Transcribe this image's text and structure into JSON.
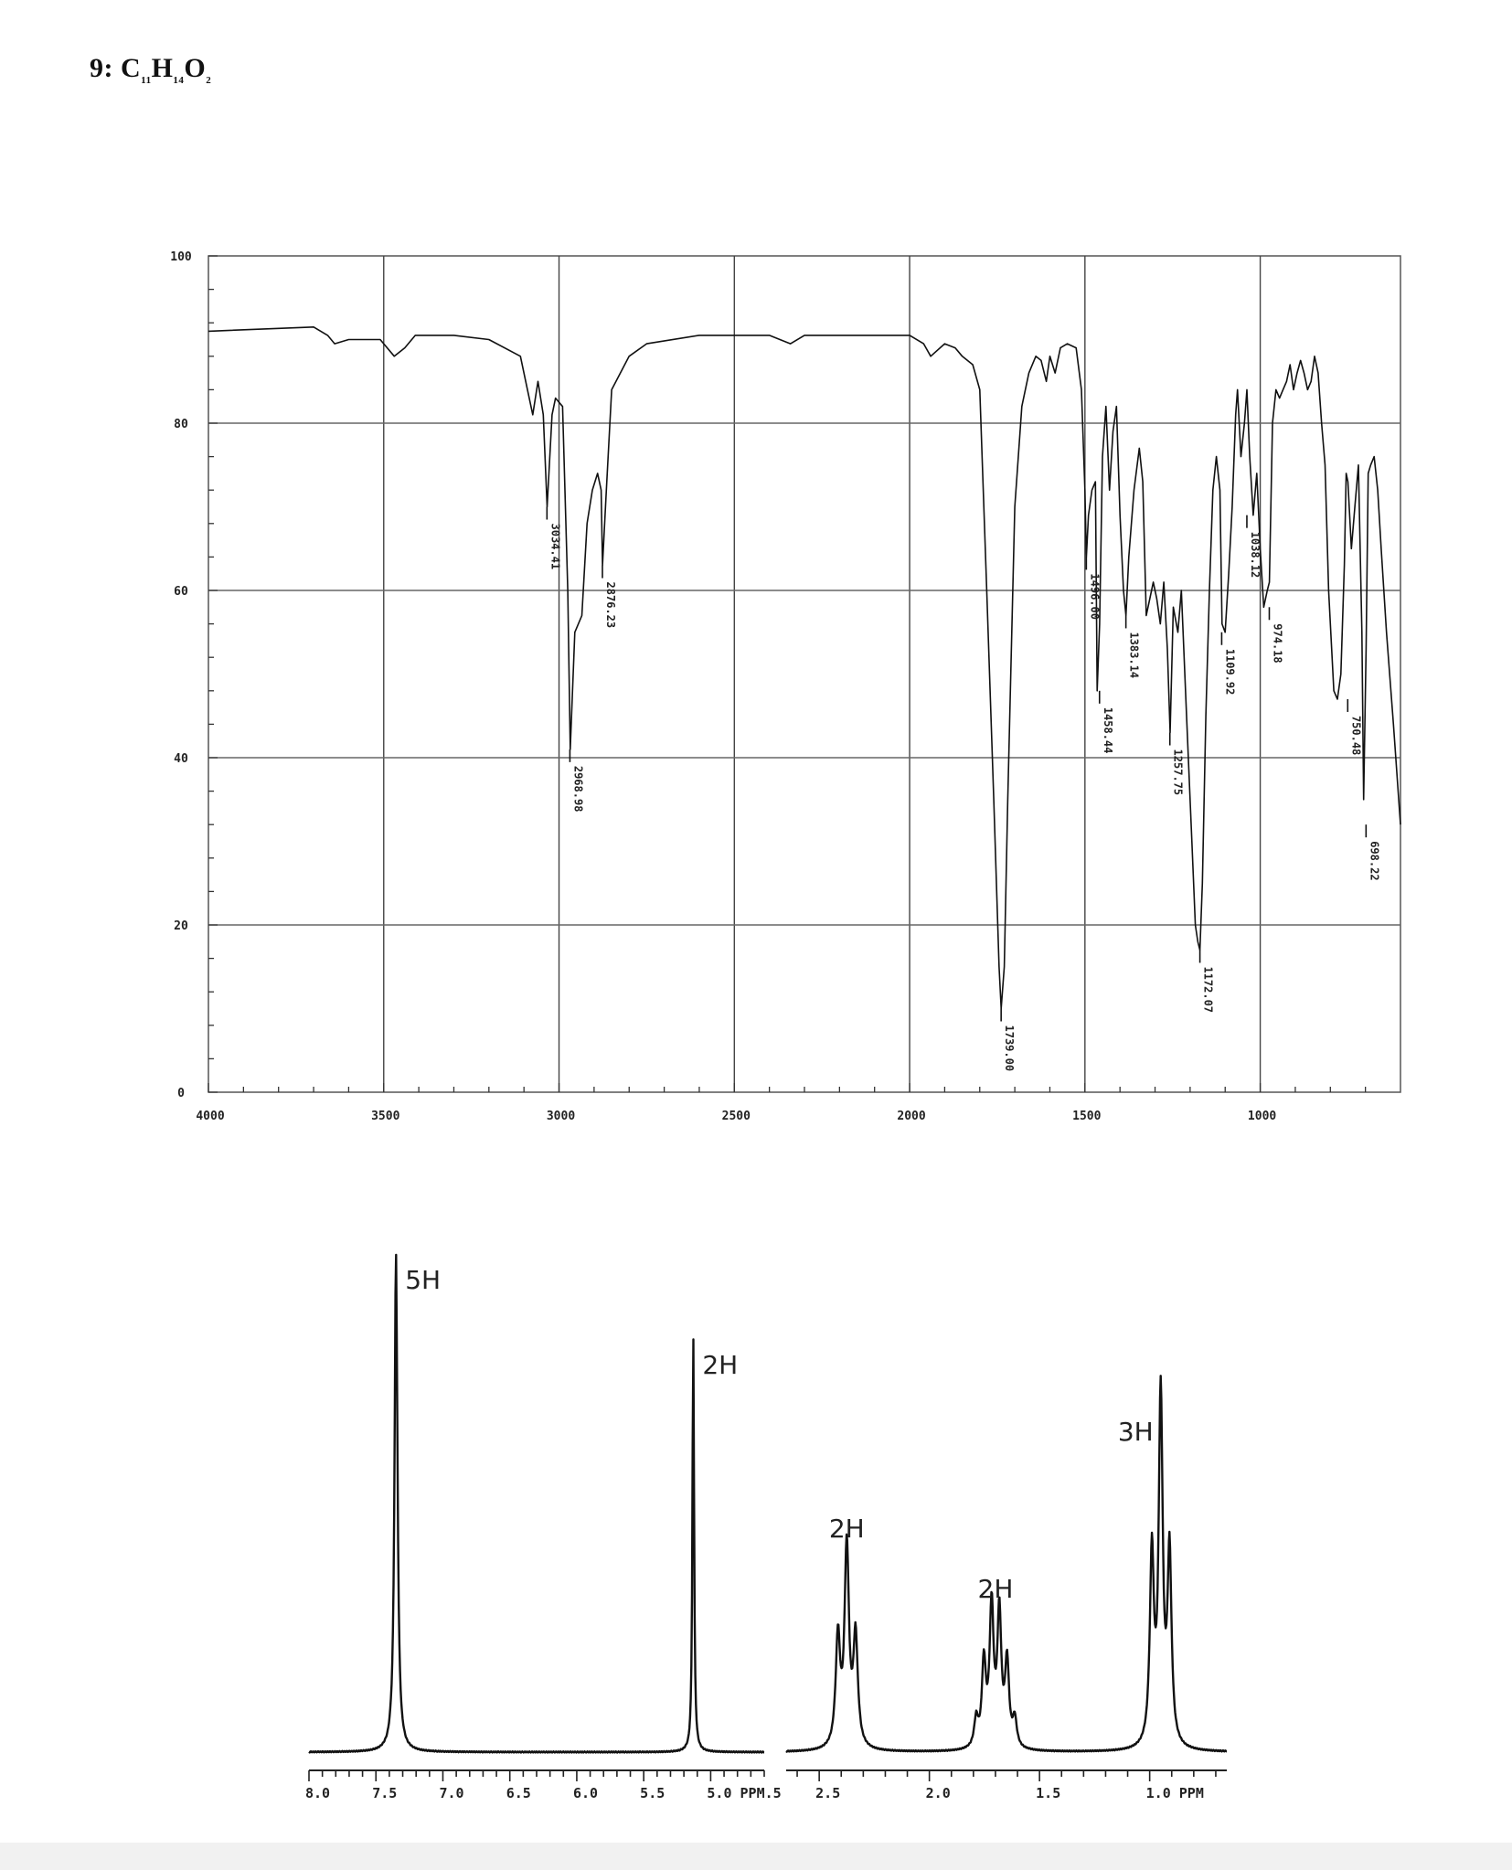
{
  "page": {
    "title_prefix": "9:",
    "formula": {
      "c": "C",
      "c_n": "11",
      "h": "H",
      "h_n": "14",
      "o": "O",
      "o_n": "2"
    }
  },
  "chart_data": [
    {
      "type": "line",
      "x_ticks": [
        4000,
        3500,
        3000,
        2500,
        2000,
        1500,
        1000
      ],
      "x_tick_labels": [
        "4000",
        "3500",
        "3000",
        "2500",
        "2000",
        "1500",
        "1000"
      ],
      "y_ticks": [
        0,
        20,
        40,
        60,
        80,
        100
      ],
      "y_tick_labels": [
        "0",
        "20",
        "40",
        "60",
        "80",
        "100"
      ],
      "xlim": [
        4000,
        600
      ],
      "ylim": [
        0,
        100
      ],
      "x_reversed": true,
      "grid": true,
      "series": [
        {
          "x": [
            4000,
            3700,
            3660,
            3640,
            3600,
            3510,
            3470,
            3440,
            3410,
            3300,
            3200,
            3110,
            3090,
            3075,
            3060,
            3045,
            3034,
            3020,
            3010,
            2990,
            2975,
            2968,
            2955,
            2935,
            2920,
            2905,
            2890,
            2880,
            2876,
            2865,
            2850,
            2800,
            2750,
            2600,
            2400,
            2340,
            2300,
            2000,
            1960,
            1940,
            1900,
            1870,
            1850,
            1820,
            1800,
            1780,
            1760,
            1745,
            1739,
            1730,
            1720,
            1700,
            1680,
            1660,
            1640,
            1625,
            1610,
            1600,
            1585,
            1570,
            1550,
            1525,
            1510,
            1500,
            1496,
            1490,
            1480,
            1470,
            1465,
            1458,
            1450,
            1440,
            1430,
            1420,
            1410,
            1400,
            1390,
            1383,
            1375,
            1360,
            1345,
            1335,
            1325,
            1315,
            1305,
            1295,
            1285,
            1275,
            1265,
            1257,
            1248,
            1235,
            1225,
            1210,
            1195,
            1185,
            1178,
            1172,
            1165,
            1155,
            1145,
            1135,
            1125,
            1115,
            1109,
            1100,
            1090,
            1080,
            1070,
            1065,
            1055,
            1045,
            1038,
            1030,
            1020,
            1010,
            1000,
            990,
            980,
            974,
            965,
            955,
            945,
            935,
            925,
            915,
            905,
            895,
            885,
            875,
            865,
            855,
            845,
            835,
            825,
            815,
            805,
            790,
            780,
            770,
            760,
            755,
            750,
            740,
            730,
            720,
            710,
            705,
            698,
            692,
            685,
            675,
            665,
            655,
            640,
            620,
            600
          ],
          "y": [
            91,
            91.5,
            90.5,
            89.5,
            90,
            90,
            88,
            89,
            90.5,
            90.5,
            90,
            88,
            84,
            81,
            85,
            81,
            70,
            81,
            83,
            82,
            60,
            41,
            55,
            57,
            68,
            72,
            74,
            72,
            63,
            72,
            84,
            88,
            89.5,
            90.5,
            90.5,
            89.5,
            90.5,
            90.5,
            89.5,
            88,
            89.5,
            89,
            88,
            87,
            84,
            60,
            35,
            15,
            10,
            15,
            35,
            70,
            82,
            86,
            88,
            87.5,
            85,
            88,
            86,
            89,
            89.5,
            89,
            84,
            72,
            64,
            69,
            72,
            73,
            48,
            56,
            76,
            82,
            72,
            79,
            82,
            69,
            60,
            57,
            64,
            72,
            77,
            73,
            57,
            59,
            61,
            59,
            56,
            61,
            53,
            43,
            58,
            55,
            60,
            45,
            30,
            20,
            18,
            17,
            25,
            45,
            60,
            72,
            76,
            72,
            56,
            55,
            62,
            70,
            81,
            84,
            76,
            80,
            84,
            76,
            69,
            74,
            65,
            58,
            60,
            61,
            80,
            84,
            83,
            84,
            85,
            87,
            84,
            86,
            87.5,
            86,
            84,
            85,
            88,
            86,
            80,
            75,
            60,
            48,
            47,
            50,
            63,
            74,
            73,
            65,
            70,
            75,
            55,
            35,
            53,
            74,
            75,
            76,
            72,
            65,
            55,
            44,
            32
          ]
        }
      ],
      "peak_labels": [
        {
          "x": 3034.41,
          "y": 70,
          "label": "3034.41"
        },
        {
          "x": 2968.98,
          "y": 41,
          "label": "2968.98"
        },
        {
          "x": 2876.23,
          "y": 63,
          "label": "2876.23"
        },
        {
          "x": 1739.0,
          "y": 10,
          "label": "1739.00"
        },
        {
          "x": 1496.0,
          "y": 64,
          "label": "1496.00"
        },
        {
          "x": 1458.44,
          "y": 48,
          "label": "1458.44"
        },
        {
          "x": 1383.14,
          "y": 57,
          "label": "1383.14"
        },
        {
          "x": 1257.75,
          "y": 43,
          "label": "1257.75"
        },
        {
          "x": 1172.07,
          "y": 17,
          "label": "1172.07"
        },
        {
          "x": 1109.92,
          "y": 55,
          "label": "1109.92"
        },
        {
          "x": 1038.12,
          "y": 69,
          "label": "1038.12"
        },
        {
          "x": 974.18,
          "y": 58,
          "label": "974.18"
        },
        {
          "x": 750.48,
          "y": 47,
          "label": "750.48"
        },
        {
          "x": 698.22,
          "y": 32,
          "label": "698.22"
        }
      ]
    },
    {
      "type": "line",
      "x_reversed": true,
      "grid": false,
      "panels": [
        {
          "xlim": [
            8.0,
            4.6
          ],
          "x_ticks": [
            8.0,
            7.5,
            7.0,
            6.5,
            6.0,
            5.5,
            5.0
          ],
          "x_tick_labels": [
            "8.0",
            "7.5",
            "7.0",
            "6.5",
            "6.0",
            "5.5",
            "5.0 PPM.5"
          ],
          "peaks": [
            {
              "shift": 7.35,
              "height": 1.0,
              "width": 0.022,
              "integration": "5H"
            },
            {
              "shift": 5.13,
              "height": 0.83,
              "width": 0.012,
              "integration": "2H"
            }
          ]
        },
        {
          "xlim": [
            2.65,
            0.65
          ],
          "x_ticks": [
            2.5,
            2.0,
            1.5,
            1.0
          ],
          "x_tick_labels": [
            "2.5",
            "2.0",
            "1.5",
            "1.0 PPM"
          ],
          "peaks": [
            {
              "shift": 2.375,
              "height": 0.4,
              "width": 0.02,
              "integration": "2H",
              "multiplicity": "t"
            },
            {
              "shift": 1.7,
              "height": 0.28,
              "width": 0.018,
              "integration": "2H",
              "multiplicity": "sextet"
            },
            {
              "shift": 0.95,
              "height": 0.7,
              "width": 0.018,
              "integration": "3H",
              "multiplicity": "t"
            }
          ]
        }
      ]
    }
  ]
}
